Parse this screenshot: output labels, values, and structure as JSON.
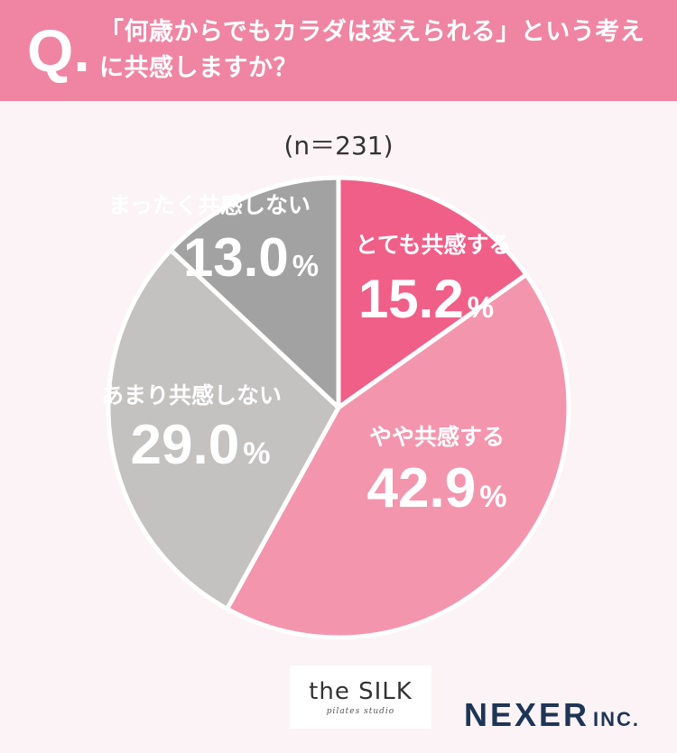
{
  "header": {
    "q_mark": "Q.",
    "question": "「何歳からでもカラダは変えられる」という考えに共感しますか？"
  },
  "sample": "(n＝231)",
  "percent_sign": "%",
  "colors": {
    "header_bg": "#ef85a2",
    "background": "#fbf3f5"
  },
  "chart_data": {
    "type": "pie",
    "title": "「何歳からでもカラダは変えられる」という考えに共感しますか？",
    "slices": [
      {
        "label": "とても共感する",
        "value": 15.2,
        "value_text": "15.2",
        "color": "#f05f88"
      },
      {
        "label": "やや共感する",
        "value": 42.9,
        "value_text": "42.9",
        "color": "#f495ae"
      },
      {
        "label": "あまり共感しない",
        "value": 29.0,
        "value_text": "29.0",
        "color": "#c4c2c1"
      },
      {
        "label": "まったく共感しない",
        "value": 13.0,
        "value_text": "13.0",
        "color": "#a3a2a2"
      }
    ]
  },
  "logos": {
    "silk_name": "the SILK",
    "silk_sub": "pilates studio",
    "nexer_name": "NEXER",
    "nexer_inc": "INC."
  }
}
